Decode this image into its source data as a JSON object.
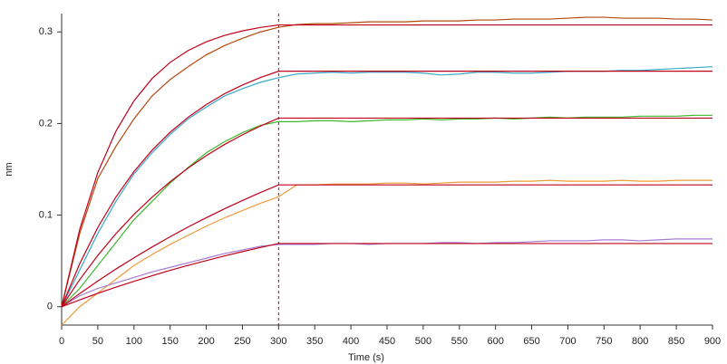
{
  "chart_data": {
    "type": "line",
    "xlabel": "Time (s)",
    "ylabel": "nm",
    "x": [
      0,
      25,
      50,
      75,
      100,
      125,
      150,
      175,
      200,
      225,
      250,
      275,
      300,
      325,
      350,
      375,
      400,
      425,
      450,
      475,
      500,
      525,
      550,
      575,
      600,
      625,
      650,
      675,
      700,
      725,
      750,
      775,
      800,
      825,
      850,
      875,
      900
    ],
    "series": [
      {
        "color": "#b5480f",
        "values": [
          0,
          0.08,
          0.14,
          0.175,
          0.205,
          0.23,
          0.248,
          0.262,
          0.275,
          0.285,
          0.293,
          0.3,
          0.305,
          0.308,
          0.309,
          0.309,
          0.31,
          0.311,
          0.311,
          0.311,
          0.312,
          0.312,
          0.312,
          0.313,
          0.313,
          0.314,
          0.314,
          0.314,
          0.315,
          0.316,
          0.316,
          0.315,
          0.315,
          0.315,
          0.314,
          0.314,
          0.313
        ]
      },
      {
        "color": "#3aa9c8",
        "values": [
          0,
          0.04,
          0.08,
          0.115,
          0.145,
          0.168,
          0.188,
          0.205,
          0.218,
          0.23,
          0.238,
          0.245,
          0.25,
          0.254,
          0.255,
          0.256,
          0.255,
          0.256,
          0.256,
          0.256,
          0.255,
          0.253,
          0.254,
          0.256,
          0.256,
          0.255,
          0.255,
          0.256,
          0.257,
          0.257,
          0.257,
          0.258,
          0.258,
          0.259,
          0.26,
          0.261,
          0.262
        ]
      },
      {
        "color": "#3cb82b",
        "values": [
          0,
          0.02,
          0.045,
          0.07,
          0.095,
          0.115,
          0.135,
          0.152,
          0.168,
          0.18,
          0.19,
          0.198,
          0.202,
          0.202,
          0.203,
          0.203,
          0.202,
          0.203,
          0.204,
          0.204,
          0.205,
          0.204,
          0.205,
          0.205,
          0.206,
          0.205,
          0.206,
          0.207,
          0.206,
          0.207,
          0.207,
          0.207,
          0.208,
          0.208,
          0.208,
          0.209,
          0.209
        ]
      },
      {
        "color": "#ef9a3a",
        "values": [
          -0.02,
          0,
          0.015,
          0.03,
          0.045,
          0.057,
          0.068,
          0.078,
          0.088,
          0.097,
          0.105,
          0.113,
          0.12,
          0.133,
          0.133,
          0.134,
          0.134,
          0.134,
          0.135,
          0.135,
          0.134,
          0.135,
          0.136,
          0.136,
          0.136,
          0.137,
          0.137,
          0.138,
          0.137,
          0.137,
          0.137,
          0.138,
          0.137,
          0.137,
          0.138,
          0.138,
          0.138
        ]
      },
      {
        "color": "#a57bd4",
        "values": [
          0,
          0.012,
          0.02,
          0.026,
          0.032,
          0.038,
          0.043,
          0.048,
          0.053,
          0.058,
          0.062,
          0.066,
          0.068,
          0.068,
          0.068,
          0.069,
          0.069,
          0.068,
          0.069,
          0.069,
          0.069,
          0.07,
          0.07,
          0.069,
          0.07,
          0.07,
          0.071,
          0.072,
          0.072,
          0.072,
          0.073,
          0.073,
          0.072,
          0.073,
          0.074,
          0.074,
          0.074
        ]
      },
      {
        "color": "#c0001a",
        "values": [
          0,
          0.0845,
          0.1465,
          0.1915,
          0.2248,
          0.249,
          0.2667,
          0.2797,
          0.2892,
          0.2961,
          0.3011,
          0.3049,
          0.3076,
          0.3076,
          0.3076,
          0.3076,
          0.3076,
          0.3076,
          0.3076,
          0.3076,
          0.3076,
          0.3076,
          0.3076,
          0.3076,
          0.3076,
          0.3076,
          0.3076,
          0.3076,
          0.3076,
          0.3076,
          0.3076,
          0.3076,
          0.3076,
          0.3076,
          0.3076,
          0.3076,
          0.3076
        ]
      },
      {
        "color": "#c0001a",
        "values": [
          0,
          0.047,
          0.0865,
          0.1197,
          0.1475,
          0.1708,
          0.1904,
          0.2069,
          0.2207,
          0.2324,
          0.242,
          0.2502,
          0.2571,
          0.2571,
          0.2571,
          0.2571,
          0.2571,
          0.2571,
          0.2571,
          0.2571,
          0.2571,
          0.2571,
          0.2571,
          0.2571,
          0.2571,
          0.2571,
          0.2571,
          0.2571,
          0.2571,
          0.2571,
          0.2571,
          0.2571,
          0.2571,
          0.2571,
          0.2571,
          0.2571,
          0.2571
        ]
      },
      {
        "color": "#c0001a",
        "values": [
          0,
          0.0296,
          0.056,
          0.0797,
          0.1008,
          0.1196,
          0.1364,
          0.1515,
          0.165,
          0.177,
          0.1877,
          0.1973,
          0.2059,
          0.2059,
          0.2059,
          0.2059,
          0.2059,
          0.2059,
          0.2059,
          0.2059,
          0.2059,
          0.2059,
          0.2059,
          0.2059,
          0.2059,
          0.2059,
          0.2059,
          0.2059,
          0.2059,
          0.2059,
          0.2059,
          0.2059,
          0.2059,
          0.2059,
          0.2059,
          0.2059,
          0.2059
        ]
      },
      {
        "color": "#c0001a",
        "values": [
          0,
          0.0144,
          0.0281,
          0.0411,
          0.0534,
          0.0652,
          0.0764,
          0.0871,
          0.0972,
          0.1068,
          0.116,
          0.1247,
          0.133,
          0.133,
          0.133,
          0.133,
          0.133,
          0.133,
          0.133,
          0.133,
          0.133,
          0.133,
          0.133,
          0.133,
          0.133,
          0.133,
          0.133,
          0.133,
          0.133,
          0.133,
          0.133,
          0.133,
          0.133,
          0.133,
          0.133,
          0.133,
          0.133
        ]
      },
      {
        "color": "#c0001a",
        "values": [
          0,
          0.0075,
          0.0146,
          0.0213,
          0.0277,
          0.0338,
          0.0397,
          0.0452,
          0.0504,
          0.0554,
          0.0602,
          0.0647,
          0.069,
          0.069,
          0.069,
          0.069,
          0.069,
          0.069,
          0.069,
          0.069,
          0.069,
          0.069,
          0.069,
          0.069,
          0.069,
          0.069,
          0.069,
          0.069,
          0.069,
          0.069,
          0.069,
          0.069,
          0.069,
          0.069,
          0.069,
          0.069,
          0.069
        ]
      }
    ],
    "xlim": [
      0,
      900
    ],
    "xticks": [
      0,
      50,
      100,
      150,
      200,
      250,
      300,
      350,
      400,
      450,
      500,
      550,
      600,
      650,
      700,
      750,
      800,
      850,
      900
    ],
    "ylim": [
      -0.02,
      0.32
    ],
    "yticks": [
      0,
      0.1,
      0.2,
      0.3
    ],
    "vlines": [
      {
        "x": 300,
        "color": "#c0001a"
      }
    ],
    "grid": false
  }
}
